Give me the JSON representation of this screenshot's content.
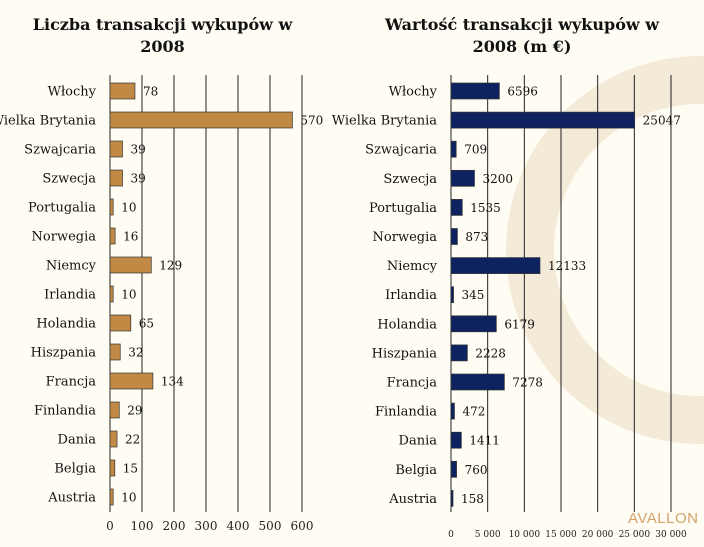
{
  "chart_data": [
    {
      "type": "bar",
      "orientation": "horizontal",
      "title": "Liczba transakcji wykupów w 2008",
      "title_lines": [
        "Liczba transakcji wykupów w",
        "2008"
      ],
      "categories": [
        "Włochy",
        "Wielka Brytania",
        "Szwajcaria",
        "Szwecja",
        "Portugalia",
        "Norwegia",
        "Niemcy",
        "Irlandia",
        "Holandia",
        "Hiszpania",
        "Francja",
        "Finlandia",
        "Dania",
        "Belgia",
        "Austria"
      ],
      "values": [
        78,
        570,
        39,
        39,
        10,
        16,
        129,
        10,
        65,
        32,
        134,
        29,
        22,
        15,
        10
      ],
      "data_labels": [
        "78",
        "570",
        "39",
        "39",
        "10",
        "16",
        "129",
        "10",
        "65",
        "32",
        "134",
        "29",
        "22",
        "15",
        "10"
      ],
      "xlim": [
        0,
        600
      ],
      "ticks": [
        0,
        100,
        200,
        300,
        400,
        500,
        600
      ],
      "tick_labels": [
        "0",
        "100",
        "200",
        "300",
        "400",
        "500",
        "600"
      ],
      "grid": true,
      "color": "#c08a45"
    },
    {
      "type": "bar",
      "orientation": "horizontal",
      "title": "Wartość transakcji wykupów w 2008 (m €)",
      "title_lines": [
        "Wartość transakcji wykupów w",
        "2008 (m €)"
      ],
      "categories": [
        "Włochy",
        "Wielka Brytania",
        "Szwajcaria",
        "Szwecja",
        "Portugalia",
        "Norwegia",
        "Niemcy",
        "Irlandia",
        "Holandia",
        "Hiszpania",
        "Francja",
        "Finlandia",
        "Dania",
        "Belgia",
        "Austria"
      ],
      "values": [
        6596,
        25047,
        709,
        3200,
        1535,
        873,
        12133,
        345,
        6179,
        2228,
        7278,
        472,
        1411,
        760,
        158
      ],
      "data_labels": [
        "6596",
        "25047",
        "709",
        "3200",
        "1535",
        "873",
        "12133",
        "345",
        "6179",
        "2228",
        "7278",
        "472",
        "1411",
        "760",
        "158"
      ],
      "xlim": [
        0,
        30000
      ],
      "ticks": [
        0,
        5000,
        10000,
        15000,
        20000,
        25000,
        30000
      ],
      "tick_labels": [
        "0",
        "5 000",
        "10 000",
        "15 000",
        "20 000",
        "25 000",
        "30 000"
      ],
      "grid": true,
      "color": "#0e2260"
    }
  ],
  "watermark": "AVALLON"
}
